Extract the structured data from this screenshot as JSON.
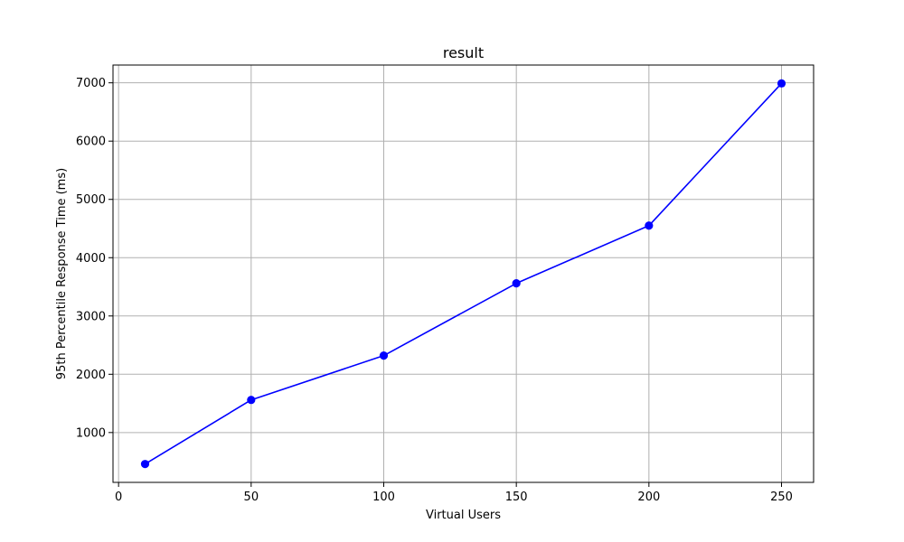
{
  "chart_data": {
    "type": "line",
    "title": "result",
    "xlabel": "Virtual Users",
    "ylabel": "95th Percentile Response Time (ms)",
    "x": [
      10,
      50,
      100,
      150,
      200,
      250
    ],
    "series": [
      {
        "values": [
          460,
          1560,
          2320,
          3560,
          4550,
          6990
        ],
        "color": "#0000ff",
        "marker": "circle"
      }
    ],
    "xlim": [
      -2.1,
      262.1
    ],
    "ylim": [
      145,
      7305
    ],
    "xticks": [
      0,
      50,
      100,
      150,
      200,
      250
    ],
    "xtick_labels": [
      "0",
      "50",
      "100",
      "150",
      "200",
      "250"
    ],
    "yticks": [
      1000,
      2000,
      3000,
      4000,
      5000,
      6000,
      7000
    ],
    "ytick_labels": [
      "1000",
      "2000",
      "3000",
      "4000",
      "5000",
      "6000",
      "7000"
    ],
    "grid": true,
    "grid_color": "#b0b0b0"
  }
}
